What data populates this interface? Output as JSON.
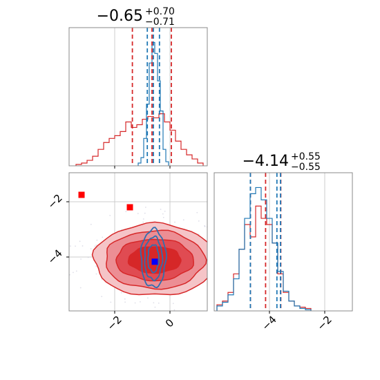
{
  "chart_data": {
    "type": "corner",
    "parameters": 2,
    "panels": [
      {
        "panel": "histogram-param-1",
        "type": "histogram",
        "title": {
          "median": "−0.65",
          "plus": "+0.70",
          "minus": "−0.71"
        },
        "xlim": [
          -3.65,
          1.35
        ],
        "grid": true,
        "x_ticks": [
          -2,
          0
        ],
        "series": [
          {
            "color": "#d62728",
            "bin_edges": [
              -3.4,
              -3.2,
              -3.0,
              -2.8,
              -2.6,
              -2.4,
              -2.2,
              -2.0,
              -1.8,
              -1.6,
              -1.4,
              -1.2,
              -1.0,
              -0.8,
              -0.6,
              -0.4,
              -0.2,
              0.0,
              0.2,
              0.4,
              0.6,
              0.8,
              1.0,
              1.2
            ],
            "counts": [
              0.01,
              0.02,
              0.04,
              0.07,
              0.12,
              0.17,
              0.2,
              0.22,
              0.25,
              0.32,
              0.28,
              0.3,
              0.34,
              0.36,
              0.35,
              0.38,
              0.32,
              0.26,
              0.18,
              0.12,
              0.08,
              0.05,
              0.02
            ],
            "quantile_lines": [
              -1.36,
              -0.65,
              0.05
            ]
          },
          {
            "color": "#1f77b4",
            "bin_edges": [
              -1.15,
              -1.05,
              -0.95,
              -0.85,
              -0.75,
              -0.65,
              -0.55,
              -0.45,
              -0.35,
              -0.25,
              -0.15,
              -0.05
            ],
            "counts": [
              0.02,
              0.06,
              0.2,
              0.45,
              0.75,
              0.9,
              0.82,
              0.62,
              0.4,
              0.12,
              0.03
            ],
            "quantile_lines": [
              -0.82,
              -0.6,
              -0.38
            ]
          }
        ]
      },
      {
        "panel": "histogram-param-2",
        "type": "histogram",
        "title": {
          "median": "−4.14",
          "plus": "+0.55",
          "minus": "−0.55"
        },
        "xlim": [
          -6.0,
          -1.0
        ],
        "grid": true,
        "x_ticks": [
          -4,
          -2
        ],
        "series": [
          {
            "color": "#d62728",
            "bin_edges": [
              -5.9,
              -5.7,
              -5.5,
              -5.3,
              -5.1,
              -4.9,
              -4.7,
              -4.5,
              -4.3,
              -4.1,
              -3.9,
              -3.7,
              -3.5,
              -3.3,
              -3.1,
              -2.9,
              -2.7,
              -2.5
            ],
            "counts": [
              0.05,
              0.08,
              0.15,
              0.3,
              0.5,
              0.7,
              0.6,
              0.85,
              0.75,
              0.7,
              0.55,
              0.3,
              0.15,
              0.08,
              0.04,
              0.03,
              0.02
            ],
            "quantile_lines": [
              -4.69,
              -4.14,
              -3.59
            ]
          },
          {
            "color": "#1f77b4",
            "bin_edges": [
              -5.9,
              -5.7,
              -5.5,
              -5.3,
              -5.1,
              -4.9,
              -4.7,
              -4.5,
              -4.3,
              -4.1,
              -3.9,
              -3.7,
              -3.5,
              -3.3,
              -3.1,
              -2.9,
              -2.7,
              -2.5
            ],
            "counts": [
              0.04,
              0.07,
              0.13,
              0.26,
              0.5,
              0.75,
              0.95,
              1.0,
              0.9,
              0.75,
              0.55,
              0.32,
              0.16,
              0.08,
              0.04,
              0.02,
              0.01
            ],
            "quantile_lines": [
              -4.69,
              -3.73,
              -3.6
            ]
          }
        ]
      },
      {
        "panel": "scatter-2d",
        "type": "contour",
        "xlim": [
          -3.65,
          1.35
        ],
        "ylim": [
          -5.95,
          -0.95
        ],
        "grid": true,
        "x_ticks": [
          -2,
          0
        ],
        "y_ticks": [
          -2,
          -4
        ],
        "red_contours": [
          {
            "center": [
              -0.55,
              -4.1
            ],
            "rx": 2.2,
            "ry": 1.3,
            "fill": "#f5c4c7",
            "stroke": "#d62728"
          },
          {
            "center": [
              -0.55,
              -4.1
            ],
            "rx": 1.8,
            "ry": 1.05,
            "fill": "#ec8e94",
            "stroke": "#d62728"
          },
          {
            "center": [
              -0.55,
              -4.1
            ],
            "rx": 1.4,
            "ry": 0.75,
            "fill": "#e04b52",
            "stroke": "#d62728"
          },
          {
            "center": [
              -0.55,
              -4.1
            ],
            "rx": 0.95,
            "ry": 0.48,
            "fill": "#d62728",
            "stroke": "#d62728"
          }
        ],
        "blue_contours": [
          {
            "center": [
              -0.6,
              -4.05
            ],
            "rx": 0.45,
            "ry": 1.05
          },
          {
            "center": [
              -0.6,
              -4.05
            ],
            "rx": 0.32,
            "ry": 0.78
          },
          {
            "center": [
              -0.6,
              -4.05
            ],
            "rx": 0.2,
            "ry": 0.5
          }
        ],
        "markers": [
          {
            "x": -3.2,
            "y": -1.75,
            "color": "#ff0000"
          },
          {
            "x": -1.45,
            "y": -2.2,
            "color": "#ff0000"
          },
          {
            "x": -0.55,
            "y": -4.17,
            "color": "#0000ff"
          }
        ]
      }
    ]
  }
}
